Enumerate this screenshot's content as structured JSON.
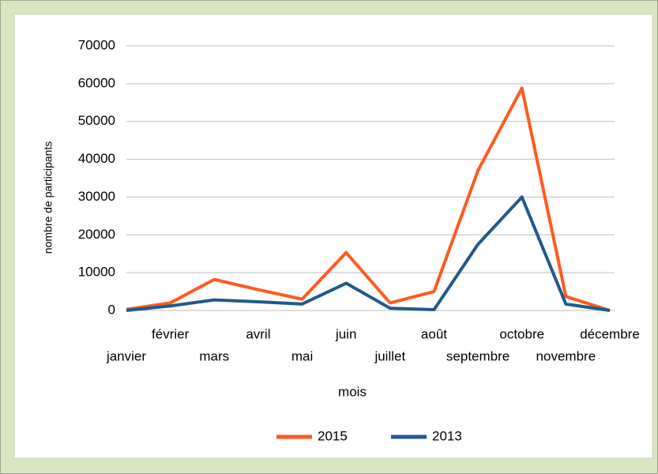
{
  "chart_data": {
    "type": "line",
    "x_label": "mois",
    "y_label": "nombre de participants",
    "categories": [
      "janvier",
      "février",
      "mars",
      "avril",
      "mai",
      "juin",
      "juillet",
      "août",
      "septembre",
      "octobre",
      "novembre",
      "décembre"
    ],
    "series": [
      {
        "name": "2015",
        "color": "#ff5a1f",
        "values": [
          300,
          2000,
          8200,
          5500,
          3000,
          15300,
          2000,
          5000,
          37000,
          58800,
          3700,
          0
        ]
      },
      {
        "name": "2013",
        "color": "#1f5a8e",
        "values": [
          0,
          1200,
          2800,
          2300,
          1700,
          7200,
          600,
          200,
          17500,
          30000,
          1700,
          0
        ]
      }
    ],
    "ylim": [
      0,
      70000
    ],
    "yticks": [
      0,
      10000,
      20000,
      30000,
      40000,
      50000,
      60000,
      70000
    ],
    "grid": true,
    "legend": "bottom"
  }
}
